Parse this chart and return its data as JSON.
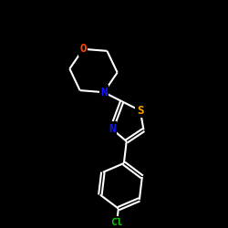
{
  "background_color": "#000000",
  "bond_color": "#ffffff",
  "atom_colors": {
    "N": "#1414ff",
    "O": "#ff4500",
    "S": "#ffa500",
    "Cl": "#00cc00",
    "C": "#ffffff"
  },
  "figsize": [
    2.5,
    2.5
  ],
  "dpi": 100,
  "xlim": [
    0,
    10
  ],
  "ylim": [
    0,
    10
  ]
}
